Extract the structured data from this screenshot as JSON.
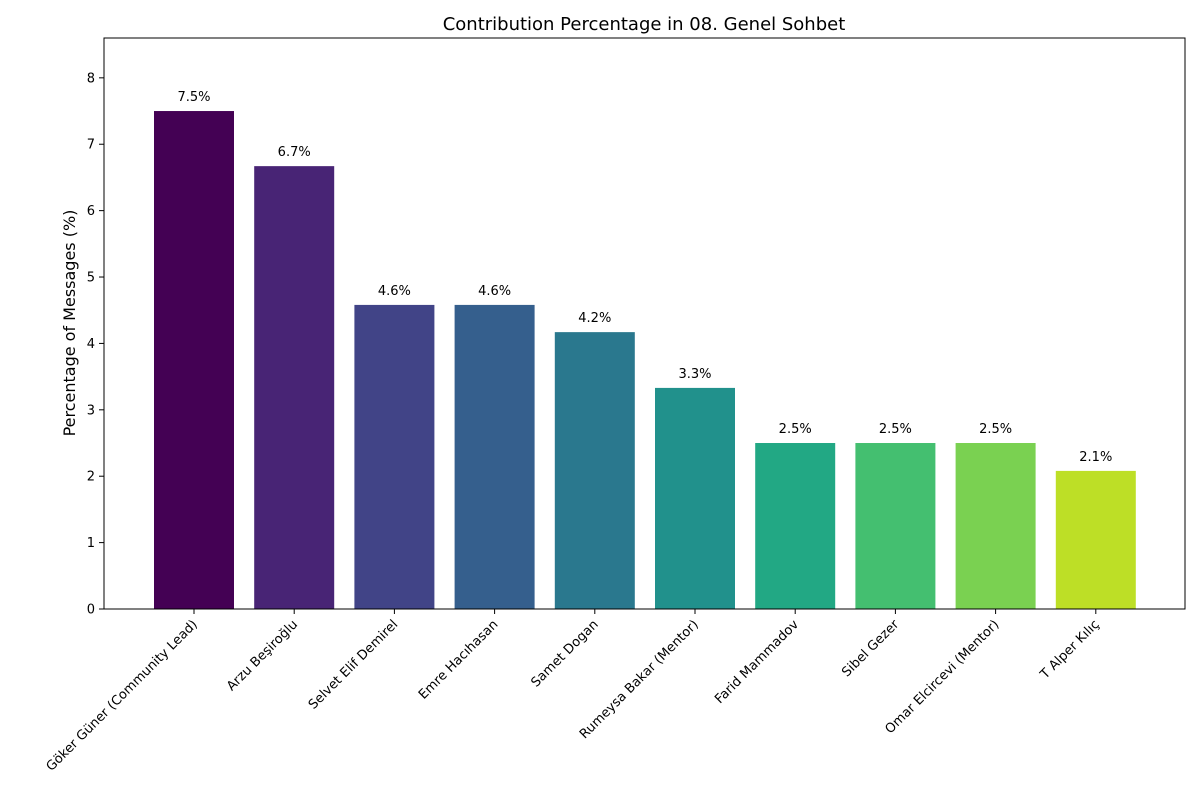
{
  "chart_data": {
    "type": "bar",
    "title": "Contribution Percentage in 08. Genel Sohbet",
    "xlabel": "",
    "ylabel": "Percentage of Messages (%)",
    "ylim": [
      0,
      8.6
    ],
    "yticks": [
      0,
      1,
      2,
      3,
      4,
      5,
      6,
      7,
      8
    ],
    "grid": false,
    "categories": [
      "Göker Güner (Community Lead)",
      "Arzu Beşiroğlu",
      "Selvet Elif Demirel",
      "Emre Hacıhasan",
      "Samet Dogan",
      "Rumeysa Bakar (Mentor)",
      "Farid Mammadov",
      "Sibel Gezer",
      "Omar Elcircevi (Mentor)",
      "T Alper Kılıç"
    ],
    "values": [
      7.5,
      6.67,
      4.58,
      4.58,
      4.17,
      3.33,
      2.5,
      2.5,
      2.5,
      2.08
    ],
    "data_labels": [
      "7.5%",
      "6.7%",
      "4.6%",
      "4.6%",
      "4.2%",
      "3.3%",
      "2.5%",
      "2.5%",
      "2.5%",
      "2.1%"
    ],
    "colors": [
      "#440154",
      "#482475",
      "#414487",
      "#355f8d",
      "#2a788e",
      "#21918c",
      "#22a884",
      "#44bf70",
      "#7ad151",
      "#bddf26"
    ]
  }
}
